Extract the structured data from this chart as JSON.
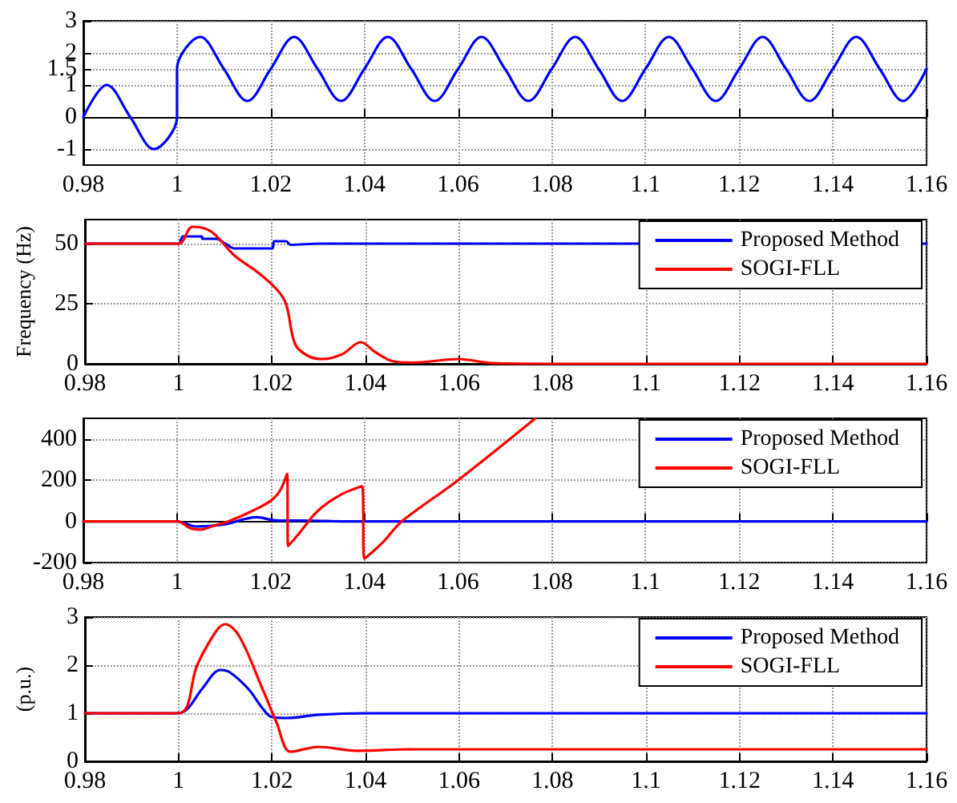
{
  "chart_data": [
    {
      "type": "line",
      "xlim": [
        0.98,
        1.16
      ],
      "xticks": [
        0.98,
        1,
        1.02,
        1.04,
        1.06,
        1.08,
        1.1,
        1.12,
        1.14,
        1.16
      ],
      "ylim": [
        -1.5,
        3
      ],
      "yticks": [
        -1,
        0,
        1,
        1.5,
        2,
        3
      ],
      "grid": true,
      "marker": "none",
      "series": [
        {
          "color": "#0000ff",
          "x": [
            0.98,
            0.985,
            0.99,
            0.995,
            1,
            1,
            1.005,
            1.01,
            1.015,
            1.02,
            1.025,
            1.03,
            1.035,
            1.04,
            1.045,
            1.05,
            1.055,
            1.06,
            1.065,
            1.07,
            1.075,
            1.08,
            1.085,
            1.09,
            1.095,
            1.1,
            1.105,
            1.11,
            1.115,
            1.12,
            1.125,
            1.13,
            1.135,
            1.14,
            1.145,
            1.15,
            1.155,
            1.16
          ],
          "values": [
            0,
            1,
            0,
            -1,
            0,
            1.5,
            2.5,
            1.5,
            0.5,
            1.5,
            2.5,
            1.5,
            0.5,
            1.5,
            2.5,
            1.5,
            0.5,
            1.5,
            2.5,
            1.5,
            0.5,
            1.5,
            2.5,
            1.5,
            0.5,
            1.5,
            2.5,
            1.5,
            0.5,
            1.5,
            2.5,
            1.5,
            0.5,
            1.5,
            2.5,
            1.5,
            0.5,
            1.5
          ]
        }
      ]
    },
    {
      "type": "line",
      "ylabel": "Frequency (Hz)",
      "xlim": [
        0.98,
        1.16
      ],
      "xticks": [
        0.98,
        1,
        1.02,
        1.04,
        1.06,
        1.08,
        1.1,
        1.12,
        1.14,
        1.16
      ],
      "ylim": [
        0,
        60
      ],
      "yticks": [
        0,
        25,
        50
      ],
      "grid": true,
      "marker": "none",
      "legend": "top right",
      "series": [
        {
          "name": "Proposed Method",
          "color": "#0000ff",
          "x": [
            0.98,
            1,
            1.001,
            1.005,
            1.0051,
            1.008,
            1.01,
            1.012,
            1.02,
            1.0205,
            1.023,
            1.024,
            1.03,
            1.04,
            1.16
          ],
          "values": [
            50,
            50,
            53,
            53,
            52,
            52,
            50,
            48,
            48,
            51,
            51,
            49.5,
            50,
            50,
            50
          ]
        },
        {
          "name": "SOGI-FLL",
          "color": "#ff0000",
          "x": [
            0.98,
            1,
            1.003,
            1.007,
            1.012,
            1.017,
            1.021,
            1.023,
            1.025,
            1.028,
            1.031,
            1.035,
            1.039,
            1.042,
            1.046,
            1.05,
            1.06,
            1.067,
            1.08,
            1.16
          ],
          "values": [
            50,
            50,
            57,
            55,
            45,
            38,
            31,
            25,
            8,
            3,
            2,
            4,
            9,
            5,
            1,
            0.5,
            2,
            0.3,
            0,
            0
          ]
        }
      ]
    },
    {
      "type": "line",
      "xlim": [
        0.98,
        1.16
      ],
      "xticks": [
        0.98,
        1,
        1.02,
        1.04,
        1.06,
        1.08,
        1.1,
        1.12,
        1.14,
        1.16
      ],
      "ylim": [
        -200,
        500
      ],
      "yticks": [
        -200,
        0,
        200,
        400
      ],
      "grid": true,
      "marker": "none",
      "legend": "top right",
      "series": [
        {
          "name": "Proposed Method",
          "color": "#0000ff",
          "x": [
            0.98,
            1,
            1.004,
            1.01,
            1.017,
            1.021,
            1.03,
            1.035,
            1.16
          ],
          "values": [
            0,
            0,
            -25,
            -15,
            20,
            5,
            3,
            0,
            0
          ]
        },
        {
          "name": "SOGI-FLL",
          "color": "#ff0000",
          "x": [
            0.98,
            1,
            1.003,
            1.005,
            1.008,
            1.011,
            1.016,
            1.02,
            1.022,
            1.0235,
            1.0237,
            1.026,
            1.03,
            1.035,
            1.0395,
            1.04,
            1.044,
            1.048,
            1.06,
            1.0765
          ],
          "values": [
            0,
            0,
            -35,
            -40,
            -20,
            0,
            50,
            100,
            150,
            230,
            -120,
            -60,
            50,
            130,
            170,
            -180,
            -100,
            0,
            200,
            500
          ]
        }
      ]
    },
    {
      "type": "line",
      "ylabel": "(p.u.)",
      "xlim": [
        0.98,
        1.16
      ],
      "xticks": [
        0.98,
        1,
        1.02,
        1.04,
        1.06,
        1.08,
        1.1,
        1.12,
        1.14,
        1.16
      ],
      "ylim": [
        0,
        3
      ],
      "yticks": [
        0,
        1,
        2,
        3
      ],
      "grid": true,
      "marker": "none",
      "legend": "top right",
      "series": [
        {
          "name": "Proposed Method",
          "color": "#0000ff",
          "x": [
            0.98,
            1,
            1.002,
            1.005,
            1.009,
            1.011,
            1.015,
            1.018,
            1.02,
            1.023,
            1.03,
            1.04,
            1.16
          ],
          "values": [
            1,
            1,
            1.1,
            1.5,
            1.9,
            1.85,
            1.5,
            1.1,
            0.92,
            0.9,
            0.97,
            1,
            1
          ]
        },
        {
          "name": "SOGI-FLL",
          "color": "#ff0000",
          "x": [
            0.98,
            1,
            1.004,
            1.008,
            1.01,
            1.013,
            1.018,
            1.021,
            1.024,
            1.03,
            1.038,
            1.05,
            1.16
          ],
          "values": [
            1,
            1,
            2,
            2.7,
            2.85,
            2.6,
            1.5,
            0.8,
            0.2,
            0.3,
            0.22,
            0.25,
            0.25
          ]
        }
      ]
    }
  ]
}
